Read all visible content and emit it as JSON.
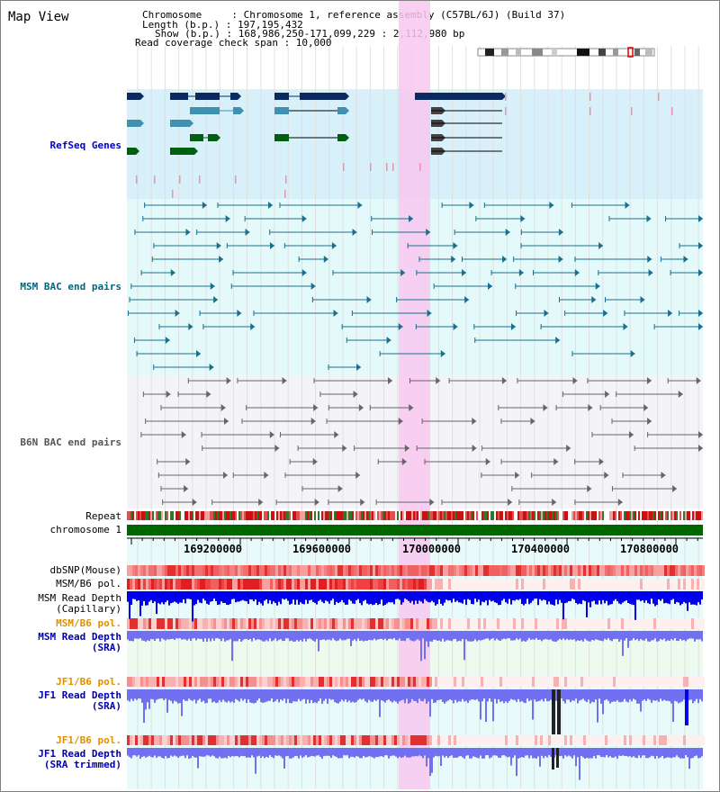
{
  "page_title": "Map View",
  "info": {
    "chromosome": "Chromosome     : Chromosome 1, reference assembly (C57BL/6J) (Build 37)",
    "length": "Length (b.p.) : 197,195,432",
    "show": "Show (b.p.) : 168,986,250-171,099,229 : 2,112,980 bp",
    "coverage": "Read coverage check span : 10,000"
  },
  "tracks": {
    "refseq": "RefSeq Genes",
    "msm_bac": "MSM BAC end pairs",
    "b6n_bac": "B6N BAC end pairs",
    "repeat": "Repeat",
    "chromosome": "chromosome 1",
    "dbsnp": "dbSNP(Mouse)",
    "msm_b6_pol": "MSM/B6 pol.",
    "msm_depth_cap_1": "MSM Read Depth",
    "msm_depth_cap_2": "(Capillary)",
    "msm_b6_pol2": "MSM/B6 pol.",
    "msm_depth_sra_1": "MSM Read Depth",
    "msm_depth_sra_2": "(SRA)",
    "jf1_b6_pol": "JF1/B6 pol.",
    "jf1_depth_sra_1": "JF1 Read Depth",
    "jf1_depth_sra_2": "(SRA)",
    "jf1_b6_pol2": "JF1/B6 pol.",
    "jf1_depth_trim_1": "JF1 Read Depth",
    "jf1_depth_trim_2": "(SRA trimmed)"
  },
  "axis_ticks": [
    "169200000",
    "169600000",
    "170000000",
    "170400000",
    "170800000"
  ],
  "colors": {
    "refseq_label": "#0000cc",
    "msm_label": "#006680",
    "b6n_label": "#555555",
    "orange_label": "#e09000",
    "blue_label": "#0000aa",
    "highlight": "#f8c8f0",
    "refseq_bg": "#d8f0fa",
    "msm_bg": "#e4fafa",
    "b6n_bg": "#f4f4f8",
    "chrom_bar": "#006600",
    "gene_dark": "#0a2a60",
    "gene_teal": "#4090b0",
    "gene_green": "#006010",
    "depth_blue": "#0000ee",
    "depth_light": "#7070f0"
  }
}
